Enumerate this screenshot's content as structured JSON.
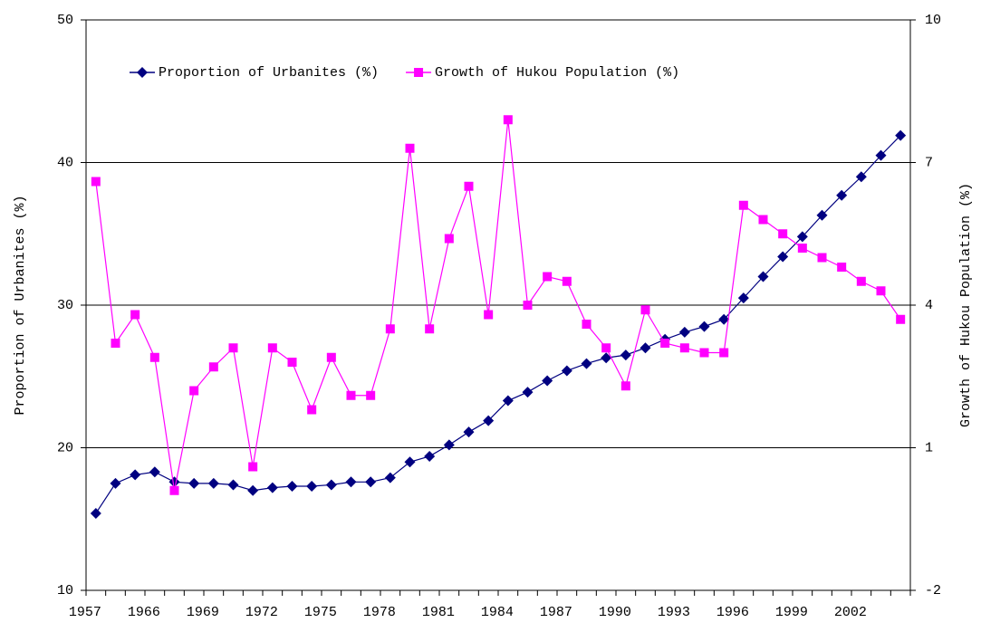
{
  "chart_data": {
    "type": "line",
    "y_label": "Proportion of Urbanites (%)",
    "y2_label": "Growth of Hukou Population (%)",
    "categories": [
      "1957",
      null,
      null,
      "1966",
      null,
      null,
      "1969",
      null,
      null,
      "1972",
      null,
      null,
      "1975",
      null,
      null,
      "1978",
      null,
      null,
      "1981",
      null,
      null,
      "1984",
      null,
      null,
      "1987",
      null,
      null,
      "1990",
      null,
      null,
      "1993",
      null,
      null,
      "1996",
      null,
      null,
      "1999",
      null,
      null,
      "2002",
      null,
      null
    ],
    "series": [
      {
        "name": "Proportion of Urbanites (%)",
        "color": "#000080",
        "marker": "diamond",
        "axis": "y",
        "values": [
          15.4,
          17.5,
          18.1,
          18.3,
          17.6,
          17.5,
          17.5,
          17.4,
          17.0,
          17.2,
          17.3,
          17.3,
          17.4,
          17.6,
          17.6,
          17.9,
          19.0,
          19.4,
          20.2,
          21.1,
          21.9,
          23.3,
          23.9,
          24.7,
          25.4,
          25.9,
          26.3,
          26.5,
          27.0,
          27.6,
          28.1,
          28.5,
          29.0,
          30.5,
          32.0,
          33.4,
          34.8,
          36.3,
          37.7,
          39.0,
          40.5,
          41.9
        ]
      },
      {
        "name": "Growth of Hukou Population (%)",
        "color": "#ff00ff",
        "marker": "square",
        "axis": "y2",
        "values": [
          6.6,
          3.2,
          3.8,
          2.9,
          0.1,
          2.2,
          2.7,
          3.1,
          0.6,
          3.1,
          2.8,
          1.8,
          2.9,
          2.1,
          2.1,
          3.5,
          7.3,
          3.5,
          5.4,
          6.5,
          3.8,
          7.9,
          4.0,
          4.6,
          4.5,
          3.6,
          3.1,
          2.3,
          3.9,
          3.2,
          3.1,
          3.0,
          3.0,
          6.1,
          5.8,
          5.5,
          5.2,
          5.0,
          4.8,
          4.5,
          4.3,
          3.7
        ]
      }
    ],
    "ylim": [
      10,
      50
    ],
    "yticks": [
      10,
      20,
      30,
      40,
      50
    ],
    "y2lim": [
      -2,
      10
    ],
    "y2ticks": [
      -2,
      1,
      4,
      7,
      10
    ],
    "grid": true,
    "legend": "top"
  }
}
